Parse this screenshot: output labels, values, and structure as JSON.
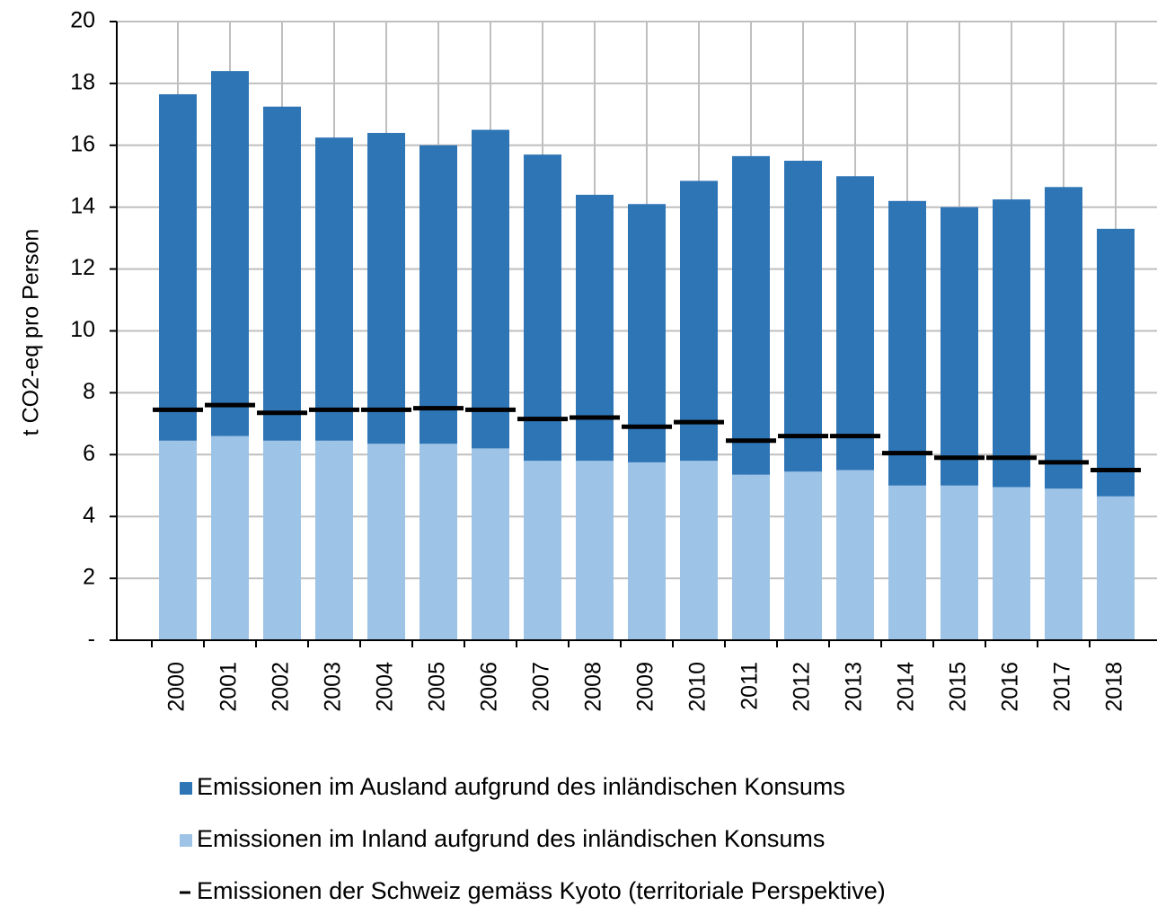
{
  "chart_data": {
    "type": "bar",
    "y_label": "t CO2-eq  pro Person",
    "categories": [
      "2000",
      "2001",
      "2002",
      "2003",
      "2004",
      "2005",
      "2006",
      "2007",
      "2008",
      "2009",
      "2010",
      "2011",
      "2012",
      "2013",
      "2014",
      "2015",
      "2016",
      "2017",
      "2018"
    ],
    "series": [
      {
        "name": "Emissionen im Ausland aufgrund des inländischen Konsums",
        "type": "bar",
        "color": "#2e75b6",
        "values": [
          11.2,
          11.8,
          10.8,
          9.8,
          10.05,
          9.65,
          10.3,
          9.9,
          8.6,
          8.35,
          9.05,
          10.3,
          10.05,
          9.5,
          9.2,
          9.0,
          9.3,
          9.75,
          8.65
        ]
      },
      {
        "name": "Emissionen im Inland aufgrund des inländischen Konsums",
        "type": "bar",
        "color": "#9dc3e6",
        "values": [
          6.45,
          6.6,
          6.45,
          6.45,
          6.35,
          6.35,
          6.2,
          5.8,
          5.8,
          5.75,
          5.8,
          5.35,
          5.45,
          5.5,
          5.0,
          5.0,
          4.95,
          4.9,
          4.65
        ]
      },
      {
        "name": "Emissionen der Schweiz gemäss Kyoto (territoriale Perspektive)",
        "type": "marker",
        "color": "#000000",
        "values": [
          7.45,
          7.6,
          7.35,
          7.45,
          7.45,
          7.5,
          7.45,
          7.15,
          7.2,
          6.9,
          7.05,
          6.45,
          6.6,
          6.6,
          6.05,
          5.9,
          5.9,
          5.75,
          5.5
        ]
      }
    ],
    "ylim": [
      0,
      20
    ],
    "yticks": [
      {
        "value": 0,
        "label": "-"
      },
      2,
      4,
      6,
      8,
      10,
      12,
      14,
      16,
      18,
      20
    ],
    "grid": true
  }
}
